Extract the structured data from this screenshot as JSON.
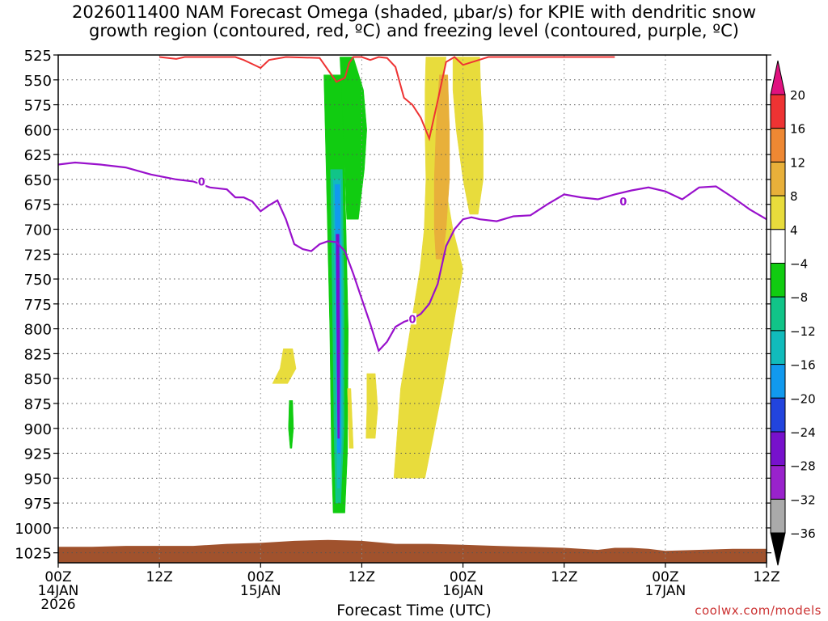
{
  "chart_data": {
    "type": "heatmap",
    "title_line1": "2026011400 NAM Forecast Omega (shaded, μbar/s) for KPIE with dendritic snow",
    "title_line2": "growth region (contoured, red, ºC) and freezing level (contoured, purple, ºC)",
    "xlabel": "Forecast Time (UTC)",
    "credit": "coolwx.com/models",
    "x_hours_range": [
      0,
      84
    ],
    "y_pressure_range": [
      525,
      1035
    ],
    "y_ticks": [
      525,
      550,
      575,
      600,
      625,
      650,
      675,
      700,
      725,
      750,
      775,
      800,
      825,
      850,
      875,
      900,
      925,
      950,
      975,
      1000,
      1025
    ],
    "x_ticks": [
      {
        "hour": 0,
        "label": "00Z",
        "sub1": "14JAN",
        "sub2": "2026"
      },
      {
        "hour": 12,
        "label": "12Z",
        "sub1": "",
        "sub2": ""
      },
      {
        "hour": 24,
        "label": "00Z",
        "sub1": "15JAN",
        "sub2": ""
      },
      {
        "hour": 36,
        "label": "12Z",
        "sub1": "",
        "sub2": ""
      },
      {
        "hour": 48,
        "label": "00Z",
        "sub1": "16JAN",
        "sub2": ""
      },
      {
        "hour": 60,
        "label": "12Z",
        "sub1": "",
        "sub2": ""
      },
      {
        "hour": 72,
        "label": "00Z",
        "sub1": "17JAN",
        "sub2": ""
      },
      {
        "hour": 84,
        "label": "12Z",
        "sub1": "",
        "sub2": ""
      }
    ],
    "colorbar": {
      "labels": [
        "20",
        "16",
        "12",
        "8",
        "4",
        "−4",
        "−8",
        "−12",
        "−16",
        "−20",
        "−24",
        "−28",
        "−32",
        "−36"
      ],
      "colors": [
        "#ee3333",
        "#ee8833",
        "#e8b03a",
        "#e8dc3c",
        "#ffffff",
        "#11cc11",
        "#11c488",
        "#11bbbb",
        "#1199ee",
        "#2244dd",
        "#7711cc",
        "#9922cc",
        "#aaaaaa"
      ],
      "top_arrow": "#e0117f",
      "bottom_arrow": "#000000"
    },
    "freezing_level": {
      "label": "0",
      "color": "#9911cc",
      "x": [
        0,
        2,
        5,
        8,
        11,
        14,
        16,
        18,
        20,
        21,
        22,
        23,
        24,
        25,
        26,
        27,
        28,
        29,
        30,
        31,
        32,
        33,
        34,
        35,
        36,
        37,
        38,
        39,
        40,
        41,
        42,
        43,
        44,
        45,
        46,
        47,
        48,
        49,
        50,
        52,
        54,
        56,
        58,
        60,
        62,
        64,
        66,
        68,
        70,
        72,
        74,
        76,
        78,
        80,
        82,
        84
      ],
      "p": [
        635,
        633,
        635,
        638,
        645,
        650,
        652,
        658,
        660,
        668,
        668,
        672,
        682,
        676,
        671,
        690,
        715,
        720,
        722,
        715,
        712,
        713,
        722,
        745,
        770,
        795,
        822,
        813,
        798,
        793,
        790,
        785,
        775,
        755,
        717,
        700,
        690,
        688,
        690,
        692,
        687,
        686,
        675,
        665,
        668,
        670,
        665,
        661,
        658,
        662,
        670,
        658,
        657,
        668,
        680,
        690
      ]
    },
    "dgz_top_edge": {
      "color": "#ee3333",
      "x": [
        12,
        14,
        15,
        21,
        22,
        23,
        24,
        25,
        27,
        31,
        32,
        33,
        34,
        34.5,
        35,
        36,
        37,
        38,
        39,
        40,
        41,
        42,
        43,
        44,
        45,
        46,
        47,
        48,
        51,
        54,
        57,
        60,
        63,
        66
      ],
      "p": [
        527,
        529,
        527,
        527,
        530,
        534,
        538,
        530,
        527,
        528,
        540,
        552,
        548,
        533,
        527,
        527,
        530,
        527,
        528,
        537,
        568,
        575,
        588,
        609,
        571,
        532,
        527,
        535,
        527,
        527,
        527,
        527,
        527,
        527
      ]
    },
    "omega_regions": [
      {
        "name": "green-core",
        "color": "#11cc11",
        "x_left": [
          31.5,
          31.8,
          32.2,
          32.4,
          32.6
        ],
        "x_right": [
          33.8,
          34.0,
          34.4,
          34.3,
          34.0
        ],
        "p": [
          545,
          650,
          800,
          925,
          985
        ]
      },
      {
        "name": "green-upper",
        "color": "#11cc11",
        "x_left": [
          33.4,
          33.6,
          33.8,
          34.0,
          34.2
        ],
        "x_right": [
          35.0,
          36.2,
          36.6,
          36.3,
          35.6
        ],
        "p": [
          527,
          560,
          600,
          640,
          690
        ]
      },
      {
        "name": "green-small",
        "color": "#11cc11",
        "x_left": [
          27.4,
          27.3,
          27.5
        ],
        "x_right": [
          27.8,
          27.9,
          27.7
        ],
        "p": [
          872,
          900,
          920
        ]
      },
      {
        "name": "teal-band",
        "color": "#11c488",
        "x_left": [
          32.3,
          32.5,
          32.7,
          32.9
        ],
        "x_right": [
          33.7,
          33.9,
          33.9,
          33.5
        ],
        "p": [
          640,
          760,
          900,
          975
        ]
      },
      {
        "name": "cyan-band",
        "color": "#11bbbb",
        "x_left": [
          32.6,
          32.8,
          33.0,
          33.1
        ],
        "x_right": [
          33.5,
          33.7,
          33.7,
          33.4
        ],
        "p": [
          650,
          760,
          900,
          960
        ]
      },
      {
        "name": "blue-band",
        "color": "#1199ee",
        "x_left": [
          32.8,
          32.95,
          33.1
        ],
        "x_right": [
          33.4,
          33.55,
          33.5
        ],
        "p": [
          655,
          780,
          925
        ]
      },
      {
        "name": "purple-band",
        "color": "#7711cc",
        "x_left": [
          32.95,
          33.05,
          33.15
        ],
        "x_right": [
          33.3,
          33.4,
          33.35
        ],
        "p": [
          705,
          820,
          910
        ]
      },
      {
        "name": "yellow-main",
        "color": "#e8dc3c",
        "x_left": [
          43.6,
          43.5,
          43.5,
          43.6,
          43.4,
          42.9,
          40.6,
          39.8
        ],
        "x_right": [
          46.0,
          45.6,
          45.4,
          45.8,
          46.8,
          48.0,
          45.6,
          43.5
        ],
        "p": [
          527,
          560,
          600,
          650,
          700,
          740,
          860,
          950
        ]
      },
      {
        "name": "yellow-right",
        "color": "#e8dc3c",
        "x_left": [
          46.8,
          46.8,
          47.2,
          48.0,
          48.8
        ],
        "x_right": [
          50.0,
          50.1,
          50.4,
          50.4,
          49.8
        ],
        "p": [
          527,
          560,
          600,
          650,
          685
        ]
      },
      {
        "name": "yellow-left",
        "color": "#e8dc3c",
        "x_left": [
          26.7,
          26.3,
          25.4
        ],
        "x_right": [
          27.8,
          28.2,
          27.2
        ],
        "p": [
          820,
          840,
          855
        ]
      },
      {
        "name": "yellow-mid",
        "color": "#e8dc3c",
        "x_left": [
          36.6,
          36.6,
          36.5
        ],
        "x_right": [
          37.6,
          37.9,
          37.6
        ],
        "p": [
          845,
          880,
          910
        ]
      },
      {
        "name": "yellow-small",
        "color": "#e8dc3c",
        "x_left": [
          34.3,
          34.5
        ],
        "x_right": [
          34.7,
          35.0
        ],
        "p": [
          860,
          920
        ]
      },
      {
        "name": "orange-core",
        "color": "#e8b03a",
        "x_left": [
          45.2,
          44.8,
          44.6,
          44.6,
          44.8
        ],
        "x_right": [
          46.2,
          46.4,
          46.4,
          46.0,
          45.6
        ],
        "p": [
          545,
          600,
          650,
          700,
          730
        ]
      }
    ],
    "terrain": {
      "color": "#a0522d",
      "x": [
        0,
        4,
        8,
        12,
        16,
        20,
        24,
        28,
        32,
        36,
        40,
        44,
        48,
        52,
        56,
        60,
        64,
        66,
        68,
        70,
        72,
        76,
        80,
        84
      ],
      "p": [
        1019,
        1019,
        1018,
        1018,
        1018,
        1016,
        1015,
        1013,
        1012,
        1013,
        1016,
        1016,
        1017,
        1018,
        1019,
        1020,
        1022,
        1020,
        1020,
        1021,
        1023,
        1022,
        1021,
        1021
      ]
    }
  }
}
